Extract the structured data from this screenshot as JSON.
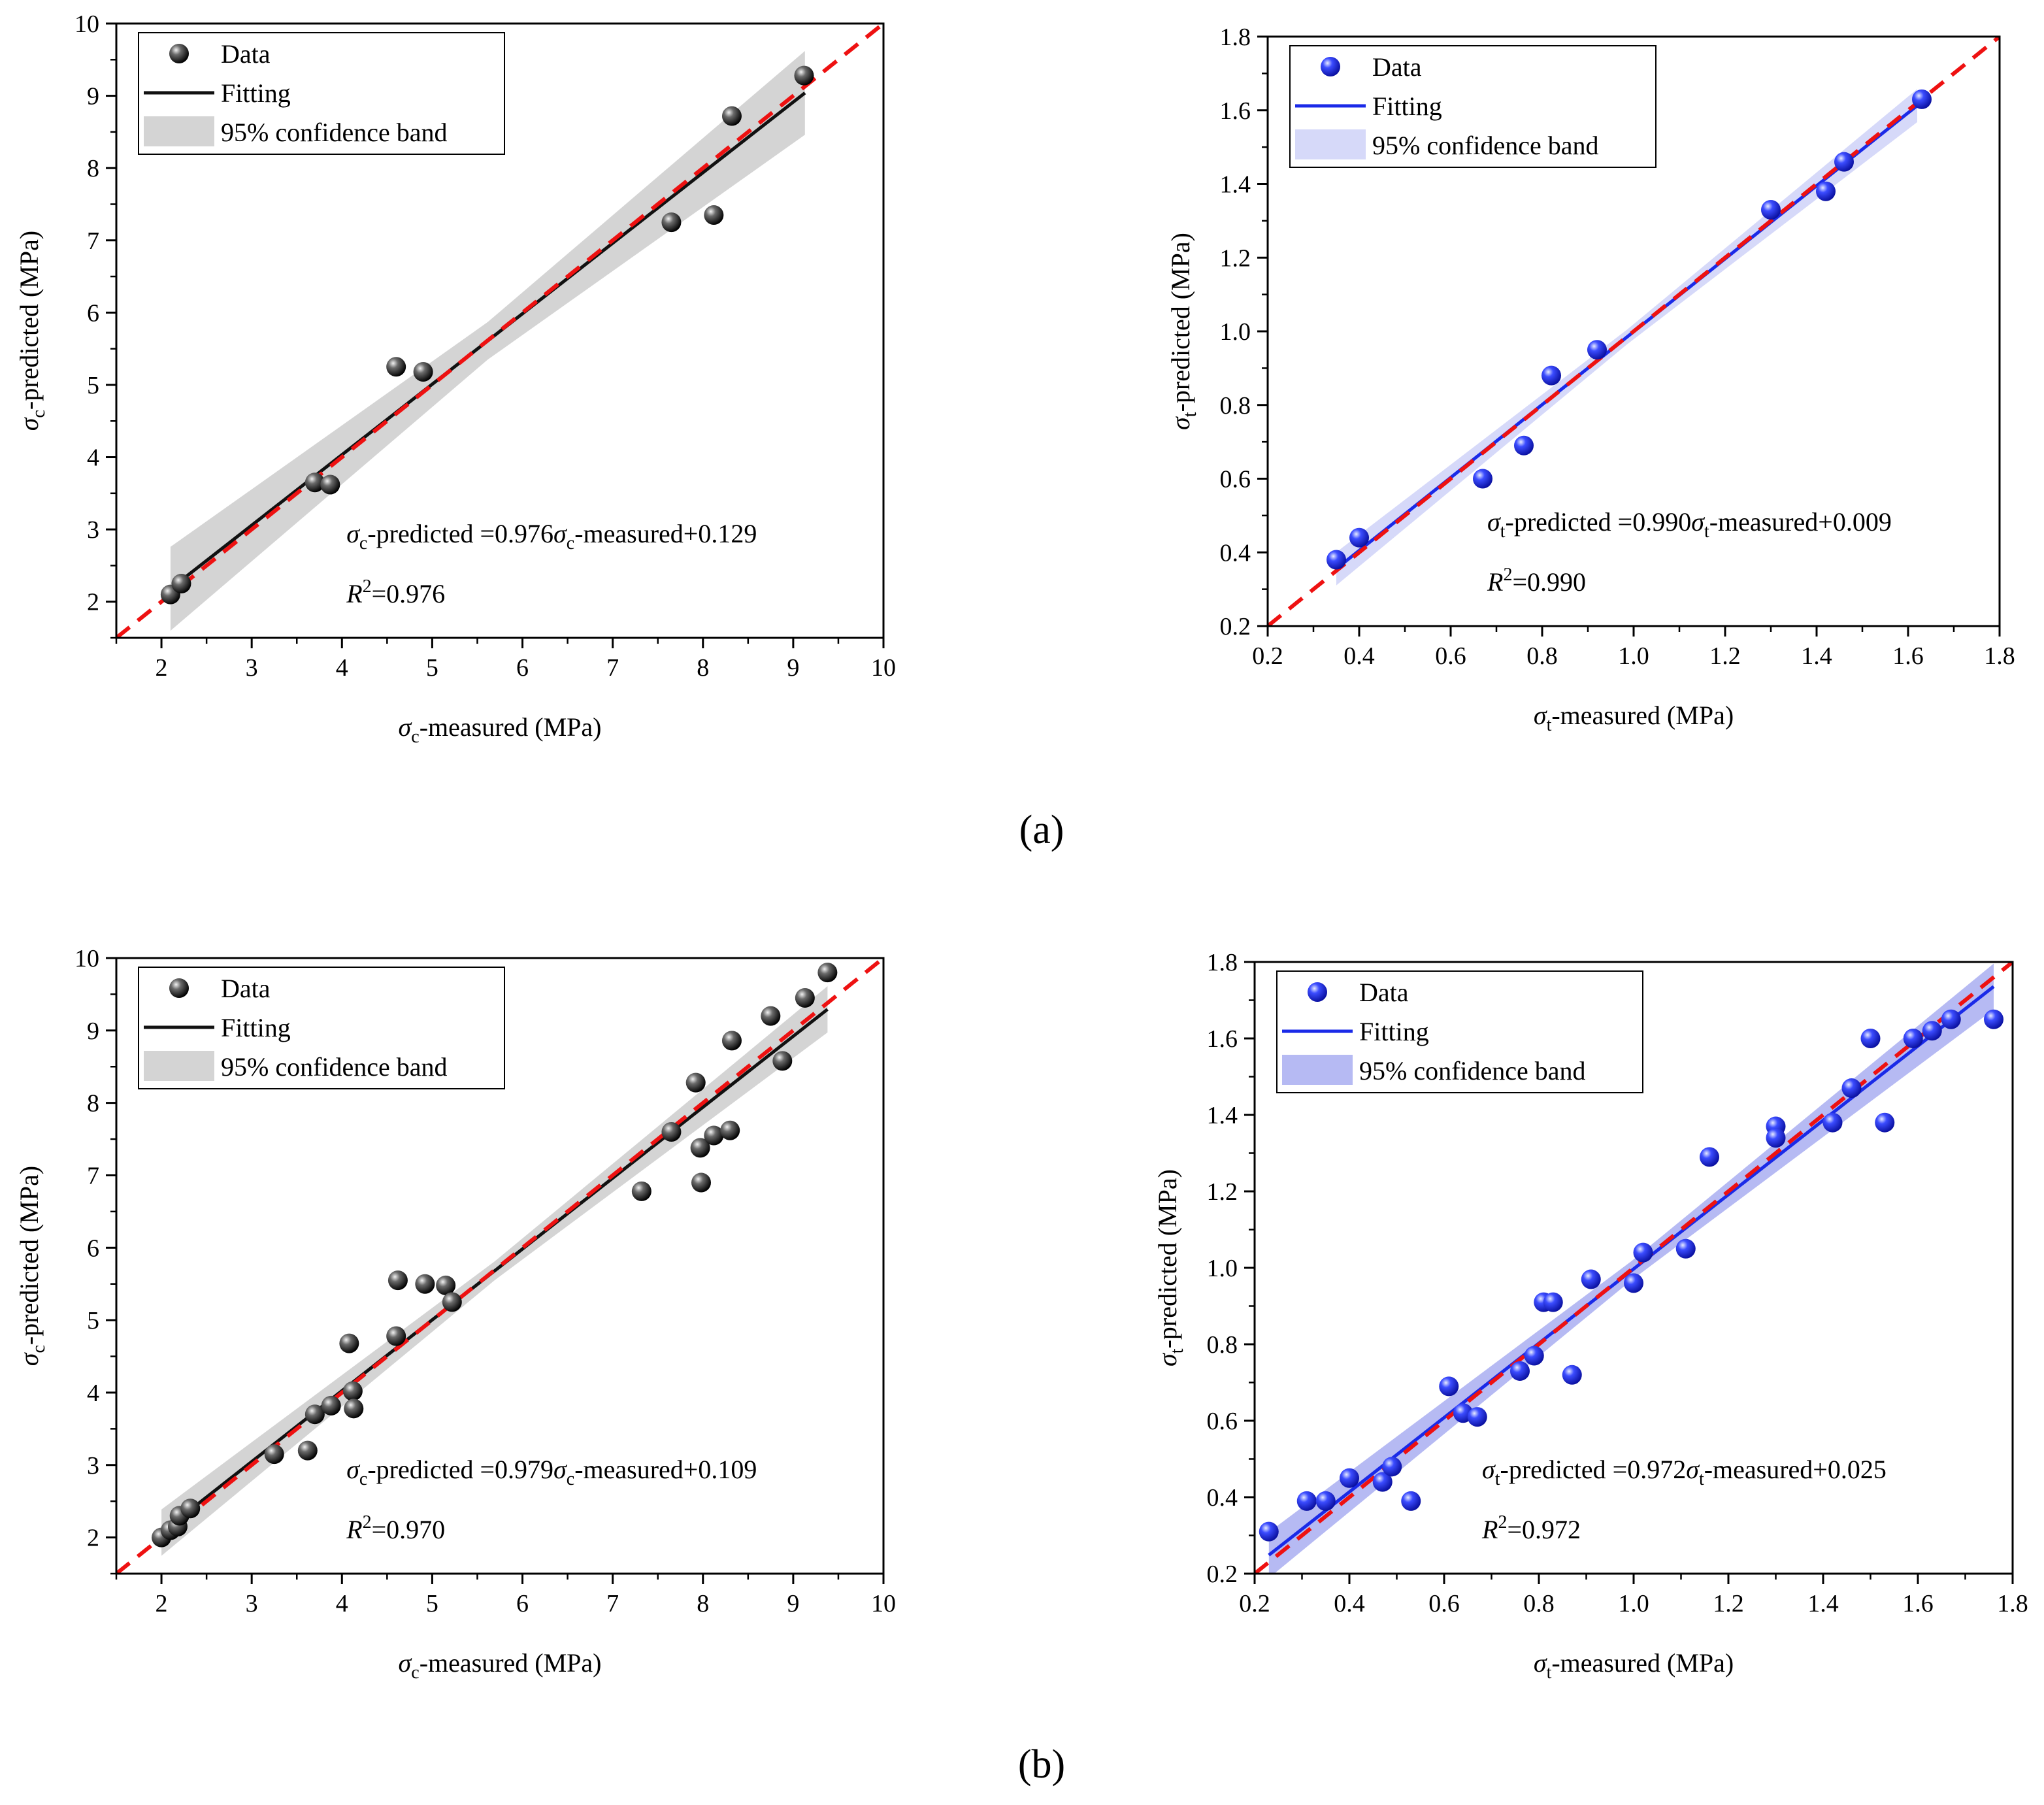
{
  "panel_labels": [
    "(a)",
    "(b)"
  ],
  "chart_data": [
    {
      "id": "a-compressive",
      "type": "scatter",
      "x_symbol": "σ",
      "x_sub": "c",
      "x_rest": "-measured (MPa)",
      "y_symbol": "σ",
      "y_sub": "c",
      "y_rest": "-predicted (MPa)",
      "xlim": [
        1.5,
        10
      ],
      "ylim": [
        1.5,
        10
      ],
      "xticks": [
        2,
        3,
        4,
        5,
        6,
        7,
        8,
        9,
        10
      ],
      "yticks": [
        2,
        3,
        4,
        5,
        6,
        7,
        8,
        9,
        10
      ],
      "tick_format": 0,
      "legend": {
        "data": "Data",
        "fit": "Fitting",
        "band": "95% confidence band",
        "placement": "top-left"
      },
      "fit": {
        "slope": 0.976,
        "intercept": 0.129,
        "x_range": [
          2.1,
          9.13
        ],
        "band_half_width": [
          0.58,
          0.26,
          0.58
        ]
      },
      "equation": {
        "lhs_symbol": "σ",
        "lhs_sub": "c",
        "lhs_rest": "-predicted =0.976",
        "rhs_symbol": "σ",
        "rhs_sub": "c",
        "rhs_rest": "-measured+0.129",
        "r2_label": "R",
        "r2_sup": "2",
        "r2_value": "=0.976"
      },
      "colors": {
        "point": "#1a1a1a",
        "fit": "#111111",
        "band": "#cccccc",
        "band_opacity": 0.85,
        "identity": "#ee1111"
      },
      "points": [
        [
          2.1,
          2.1
        ],
        [
          2.22,
          2.25
        ],
        [
          3.7,
          3.65
        ],
        [
          3.87,
          3.62
        ],
        [
          4.6,
          5.25
        ],
        [
          4.9,
          5.18
        ],
        [
          7.65,
          7.25
        ],
        [
          8.12,
          7.35
        ],
        [
          8.32,
          8.72
        ],
        [
          9.12,
          9.28
        ]
      ]
    },
    {
      "id": "a-tensile",
      "type": "scatter",
      "x_symbol": "σ",
      "x_sub": "t",
      "x_rest": "-measured (MPa)",
      "y_symbol": "σ",
      "y_sub": "t",
      "y_rest": "-predicted (MPa)",
      "xlim": [
        0.2,
        1.8
      ],
      "ylim": [
        0.2,
        1.8
      ],
      "xticks": [
        0.2,
        0.4,
        0.6,
        0.8,
        1.0,
        1.2,
        1.4,
        1.6,
        1.8
      ],
      "yticks": [
        0.2,
        0.4,
        0.6,
        0.8,
        1.0,
        1.2,
        1.4,
        1.6,
        1.8
      ],
      "tick_format": 1,
      "legend": {
        "data": "Data",
        "fit": "Fitting",
        "band": "95% confidence band",
        "placement": "top-left"
      },
      "fit": {
        "slope": 0.99,
        "intercept": 0.009,
        "x_range": [
          0.35,
          1.62
        ],
        "band_half_width": [
          0.045,
          0.02,
          0.045
        ]
      },
      "equation": {
        "lhs_symbol": "σ",
        "lhs_sub": "t",
        "lhs_rest": "-predicted =0.990",
        "rhs_symbol": "σ",
        "rhs_sub": "t",
        "rhs_rest": "-measured+0.009",
        "r2_label": "R",
        "r2_sup": "2",
        "r2_value": "=0.990"
      },
      "colors": {
        "point": "#1f2ef0",
        "fit": "#1a2ae8",
        "band": "#c8ccf7",
        "band_opacity": 0.75,
        "identity": "#ee1111"
      },
      "points": [
        [
          0.35,
          0.38
        ],
        [
          0.4,
          0.44
        ],
        [
          0.67,
          0.6
        ],
        [
          0.76,
          0.69
        ],
        [
          0.82,
          0.88
        ],
        [
          0.92,
          0.95
        ],
        [
          1.3,
          1.33
        ],
        [
          1.42,
          1.38
        ],
        [
          1.46,
          1.46
        ],
        [
          1.63,
          1.63
        ]
      ]
    },
    {
      "id": "b-compressive",
      "type": "scatter",
      "x_symbol": "σ",
      "x_sub": "c",
      "x_rest": "-measured (MPa)",
      "y_symbol": "σ",
      "y_sub": "c",
      "y_rest": "-predicted (MPa)",
      "xlim": [
        1.5,
        10
      ],
      "ylim": [
        1.5,
        10
      ],
      "xticks": [
        2,
        3,
        4,
        5,
        6,
        7,
        8,
        9,
        10
      ],
      "yticks": [
        2,
        3,
        4,
        5,
        6,
        7,
        8,
        9,
        10
      ],
      "tick_format": 0,
      "legend": {
        "data": "Data",
        "fit": "Fitting",
        "band": "95% confidence band",
        "placement": "top-left"
      },
      "fit": {
        "slope": 0.979,
        "intercept": 0.109,
        "x_range": [
          2.0,
          9.38
        ],
        "band_half_width": [
          0.32,
          0.13,
          0.32
        ]
      },
      "equation": {
        "lhs_symbol": "σ",
        "lhs_sub": "c",
        "lhs_rest": "-predicted =0.979",
        "rhs_symbol": "σ",
        "rhs_sub": "c",
        "rhs_rest": "-measured+0.109",
        "r2_label": "R",
        "r2_sup": "2",
        "r2_value": "=0.970"
      },
      "colors": {
        "point": "#1a1a1a",
        "fit": "#111111",
        "band": "#cccccc",
        "band_opacity": 0.85,
        "identity": "#ee1111"
      },
      "points": [
        [
          2.0,
          2.0
        ],
        [
          2.1,
          2.1
        ],
        [
          2.18,
          2.15
        ],
        [
          2.2,
          2.3
        ],
        [
          2.32,
          2.4
        ],
        [
          3.25,
          3.15
        ],
        [
          3.62,
          3.2
        ],
        [
          3.7,
          3.7
        ],
        [
          3.88,
          3.82
        ],
        [
          4.08,
          4.68
        ],
        [
          4.12,
          4.02
        ],
        [
          4.13,
          3.78
        ],
        [
          4.6,
          4.78
        ],
        [
          4.62,
          5.55
        ],
        [
          4.92,
          5.5
        ],
        [
          5.15,
          5.48
        ],
        [
          5.22,
          5.25
        ],
        [
          7.32,
          6.78
        ],
        [
          7.65,
          7.6
        ],
        [
          7.92,
          8.28
        ],
        [
          7.97,
          7.38
        ],
        [
          7.98,
          6.9
        ],
        [
          8.12,
          7.55
        ],
        [
          8.3,
          7.62
        ],
        [
          8.32,
          8.86
        ],
        [
          8.75,
          9.2
        ],
        [
          8.88,
          8.58
        ],
        [
          9.13,
          9.45
        ],
        [
          9.38,
          9.8
        ]
      ]
    },
    {
      "id": "b-tensile",
      "type": "scatter",
      "x_symbol": "σ",
      "x_sub": "t",
      "x_rest": "-measured (MPa)",
      "y_symbol": "σ",
      "y_sub": "t",
      "y_rest": "-predicted (MPa)",
      "xlim": [
        0.2,
        1.8
      ],
      "ylim": [
        0.2,
        1.8
      ],
      "xticks": [
        0.2,
        0.4,
        0.6,
        0.8,
        1.0,
        1.2,
        1.4,
        1.6,
        1.8
      ],
      "yticks": [
        0.2,
        0.4,
        0.6,
        0.8,
        1.0,
        1.2,
        1.4,
        1.6,
        1.8
      ],
      "tick_format": 1,
      "legend": {
        "data": "Data",
        "fit": "Fitting",
        "band": "95% confidence band",
        "placement": "top-left"
      },
      "fit": {
        "slope": 0.972,
        "intercept": 0.025,
        "x_range": [
          0.23,
          1.76
        ],
        "band_half_width": [
          0.06,
          0.025,
          0.06
        ]
      },
      "equation": {
        "lhs_symbol": "σ",
        "lhs_sub": "t",
        "lhs_rest": "-predicted =0.972",
        "rhs_symbol": "σ",
        "rhs_sub": "t",
        "rhs_rest": "-measured+0.025",
        "r2_label": "R",
        "r2_sup": "2",
        "r2_value": "=0.972"
      },
      "colors": {
        "point": "#1f2ef0",
        "fit": "#1a2ae8",
        "band": "#7a82ea",
        "band_opacity": 0.55,
        "identity": "#ee1111"
      },
      "points": [
        [
          0.23,
          0.31
        ],
        [
          0.31,
          0.39
        ],
        [
          0.35,
          0.39
        ],
        [
          0.4,
          0.45
        ],
        [
          0.47,
          0.44
        ],
        [
          0.49,
          0.48
        ],
        [
          0.53,
          0.39
        ],
        [
          0.61,
          0.69
        ],
        [
          0.64,
          0.62
        ],
        [
          0.67,
          0.61
        ],
        [
          0.76,
          0.73
        ],
        [
          0.79,
          0.77
        ],
        [
          0.81,
          0.91
        ],
        [
          0.83,
          0.91
        ],
        [
          0.87,
          0.72
        ],
        [
          0.91,
          0.97
        ],
        [
          1.0,
          0.96
        ],
        [
          1.02,
          1.04
        ],
        [
          1.11,
          1.05
        ],
        [
          1.16,
          1.29
        ],
        [
          1.3,
          1.37
        ],
        [
          1.3,
          1.34
        ],
        [
          1.42,
          1.38
        ],
        [
          1.46,
          1.47
        ],
        [
          1.5,
          1.6
        ],
        [
          1.53,
          1.38
        ],
        [
          1.59,
          1.6
        ],
        [
          1.63,
          1.62
        ],
        [
          1.67,
          1.65
        ],
        [
          1.76,
          1.65
        ]
      ]
    }
  ]
}
